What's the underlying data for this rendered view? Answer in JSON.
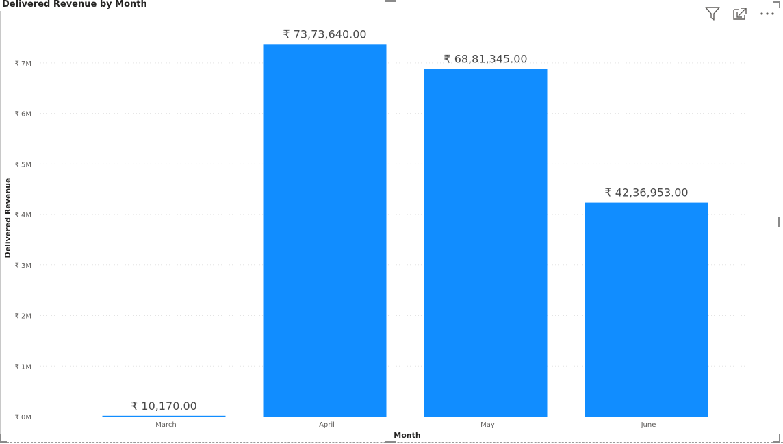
{
  "visual": {
    "title": "Delivered Revenue by Month",
    "header_icons": [
      "filter-icon",
      "focus-mode-icon",
      "more-options-icon"
    ]
  },
  "colors": {
    "bar": "#118DFF",
    "gridline": "#e3e3e3",
    "axis_text": "#605E5C",
    "data_label": "#4a4a4a"
  },
  "chart_data": {
    "type": "bar",
    "title": "Delivered Revenue by Month",
    "xlabel": "Month",
    "ylabel": "Delivered Revenue",
    "categories": [
      "March",
      "April",
      "May",
      "June"
    ],
    "values": [
      10170,
      7373640,
      6881345,
      4236953
    ],
    "data_labels": [
      "₹ 10,170.00",
      "₹ 73,73,640.00",
      "₹ 68,81,345.00",
      "₹ 42,36,953.00"
    ],
    "ylim": [
      0,
      7500000
    ],
    "yticks": [
      {
        "value": 0,
        "label": "₹ 0M"
      },
      {
        "value": 1000000,
        "label": "₹ 1M"
      },
      {
        "value": 2000000,
        "label": "₹ 2M"
      },
      {
        "value": 3000000,
        "label": "₹ 3M"
      },
      {
        "value": 4000000,
        "label": "₹ 4M"
      },
      {
        "value": 5000000,
        "label": "₹ 5M"
      },
      {
        "value": 6000000,
        "label": "₹ 6M"
      },
      {
        "value": 7000000,
        "label": "₹ 7M"
      }
    ],
    "grid": true,
    "legend": "none"
  }
}
